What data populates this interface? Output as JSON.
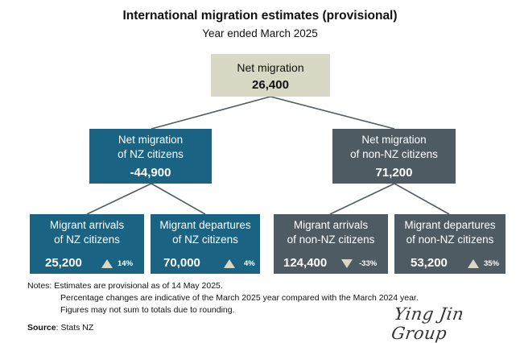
{
  "header": {
    "title": "International migration estimates (provisional)",
    "subtitle": "Year ended March 2025"
  },
  "colors": {
    "top_box": "#d9d8c5",
    "nz_citizens": "#1a6383",
    "non_nz_citizens": "#4e5b63",
    "connector": "#4e5b63",
    "change_arrow": "#d9d8c5"
  },
  "tree": {
    "root": {
      "label": "Net migration",
      "value": "26,400"
    },
    "nz": {
      "label_line1": "Net migration",
      "label_line2": "of NZ citizens",
      "value": "-44,900",
      "arrivals": {
        "label_line1": "Migrant arrivals",
        "label_line2": "of NZ citizens",
        "value": "25,200",
        "change": "14%",
        "direction": "up"
      },
      "departures": {
        "label_line1": "Migrant departures",
        "label_line2": "of NZ citizens",
        "value": "70,000",
        "change": "4%",
        "direction": "up"
      }
    },
    "non_nz": {
      "label_line1": "Net migration",
      "label_line2": "of non-NZ citizens",
      "value": "71,200",
      "arrivals": {
        "label_line1": "Migrant arrivals",
        "label_line2": "of non-NZ citizens",
        "value": "124,400",
        "change": "-33%",
        "direction": "down"
      },
      "departures": {
        "label_line1": "Migrant departures",
        "label_line2": "of non-NZ citizens",
        "value": "53,200",
        "change": "35%",
        "direction": "up"
      }
    }
  },
  "notes": {
    "prefix": "Notes: ",
    "line1": "Estimates are provisional as of 14 May 2025.",
    "line2": "Percentage changes are indicative of the March 2025 year compared with the March 2024 year.",
    "line3": "Figures may not sum to totals due to rounding."
  },
  "source": {
    "label": "Source",
    "text": ": Stats NZ"
  },
  "watermark": "Ying Jin Group"
}
